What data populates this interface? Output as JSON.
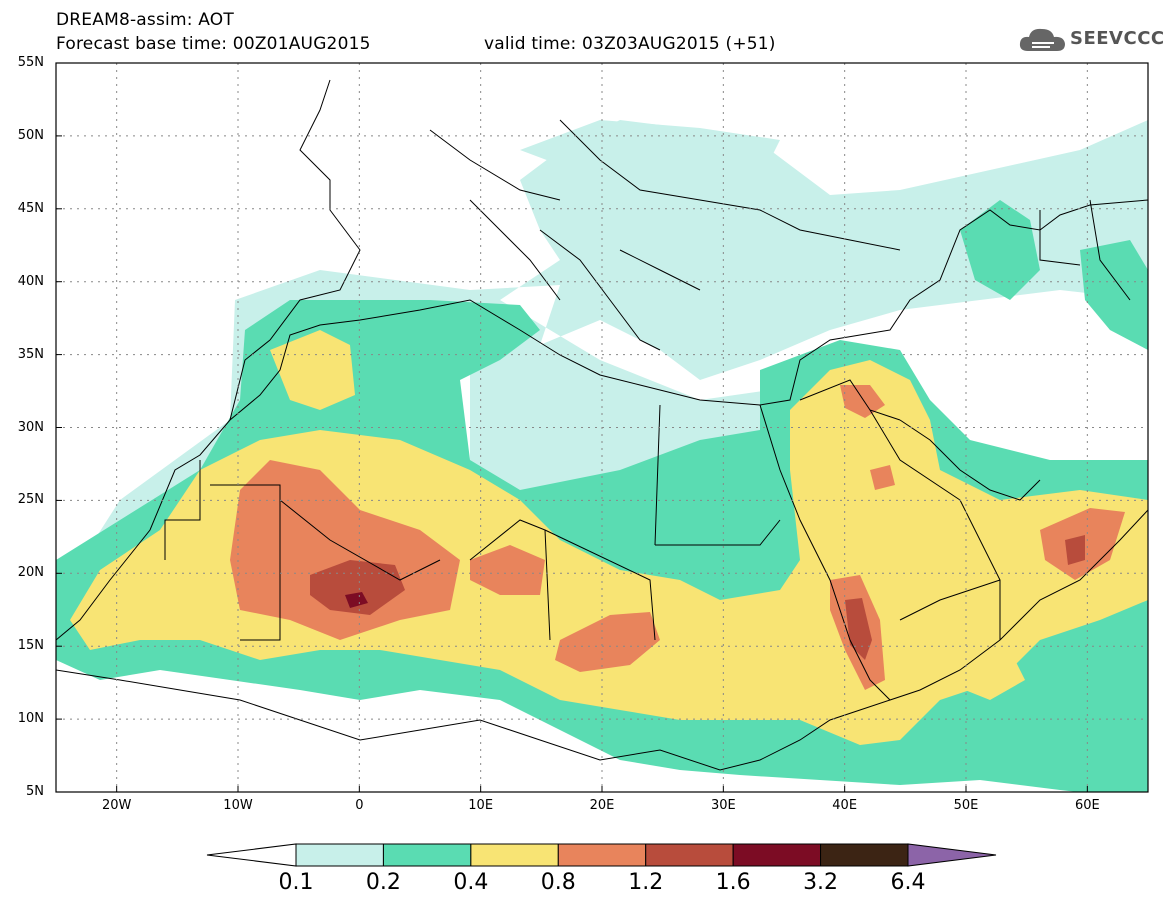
{
  "header": {
    "title": "DREAM8-assim: AOT",
    "base_time": "Forecast base time: 00Z01AUG2015",
    "valid_time": "valid time: 03Z03AUG2015 (+51)"
  },
  "logo": {
    "text": "SEEVCCC",
    "icon": "cloud-icon"
  },
  "map": {
    "lat_labels": [
      "55N",
      "50N",
      "45N",
      "40N",
      "35N",
      "30N",
      "25N",
      "20N",
      "15N",
      "10N",
      "5N"
    ],
    "lon_labels": [
      "20W",
      "10W",
      "0",
      "10E",
      "20E",
      "30E",
      "40E",
      "50E",
      "60E"
    ],
    "extent": {
      "lon_min": -25,
      "lon_max": 65,
      "lat_min": 5,
      "lat_max": 55
    },
    "grid": "dotted"
  },
  "legend": {
    "labels": [
      "0.1",
      "0.2",
      "0.4",
      "0.8",
      "1.2",
      "1.6",
      "3.2",
      "6.4"
    ],
    "colors": [
      "#c8f0ea",
      "#5adcb2",
      "#f8e474",
      "#e8845c",
      "#b84c3c",
      "#7c0c24",
      "#3c2414",
      "#8c64a8"
    ],
    "under_color": "#ffffff",
    "over_color": "#8c64a8"
  }
}
